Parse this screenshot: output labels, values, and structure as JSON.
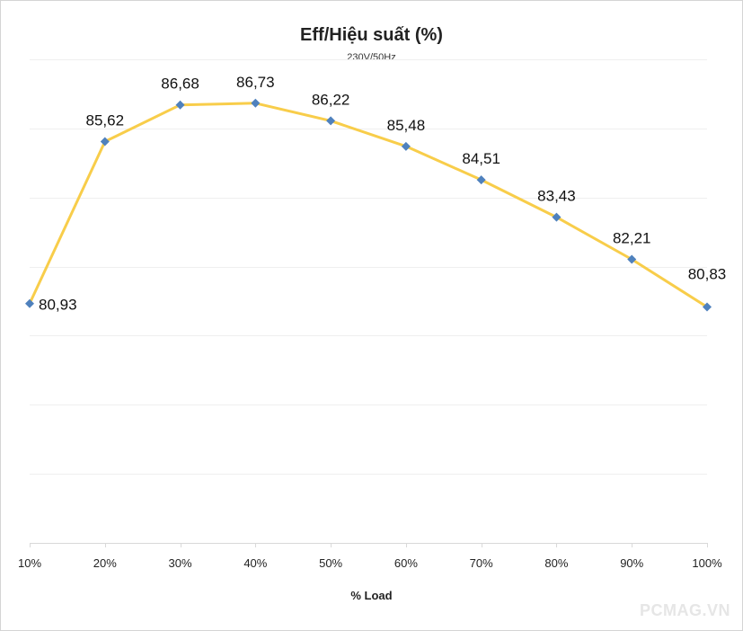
{
  "watermark": "PCMAG.VN",
  "chart_data": {
    "type": "line",
    "title": "Eff/Hiệu suất (%)",
    "subtitle": "230V/50Hz",
    "xlabel": "% Load",
    "ylabel": "",
    "categories": [
      "10%",
      "20%",
      "30%",
      "40%",
      "50%",
      "60%",
      "70%",
      "80%",
      "90%",
      "100%"
    ],
    "series": [
      {
        "values": [
          80.93,
          85.62,
          86.68,
          86.73,
          86.22,
          85.48,
          84.51,
          83.43,
          82.21,
          80.83
        ],
        "labels": [
          "80,93",
          "85,62",
          "86,68",
          "86,73",
          "86,22",
          "85,48",
          "84,51",
          "83,43",
          "82,21",
          "80,83"
        ],
        "line_color": "#f8cd4a",
        "marker_color": "#4f81bd",
        "marker": "diamond"
      }
    ],
    "ylim": [
      74,
      88
    ],
    "grid": true,
    "y_tick_labels_shown": false,
    "legend": "none"
  }
}
